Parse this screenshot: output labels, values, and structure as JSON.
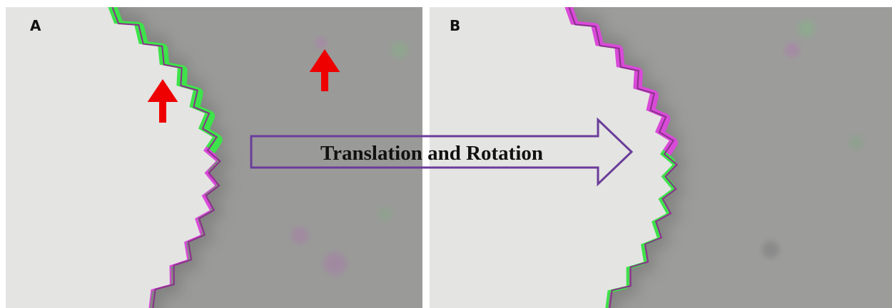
{
  "panels": [
    {
      "label": "A"
    },
    {
      "label": "B"
    }
  ],
  "arrow": {
    "label": "Translation and Rotation"
  }
}
